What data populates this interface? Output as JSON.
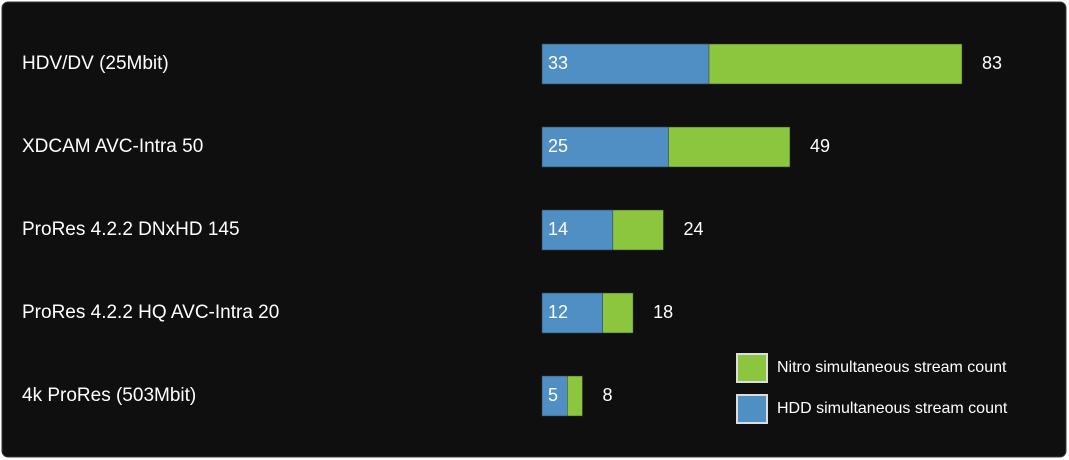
{
  "chart_data": {
    "type": "overlapping-bar",
    "categories": [
      "HDV/DV (25Mbit)",
      "XDCAM AVC-Intra 50",
      "ProRes 4.2.2 DNxHD 145",
      "ProRes 4.2.2 HQ AVC-Intra 20",
      "4k ProRes (503Mbit)"
    ],
    "series": [
      {
        "name": "Nitro simultaneous stream count",
        "color": "#8cc63f",
        "values": [
          83,
          49,
          24,
          18,
          8
        ]
      },
      {
        "name": "HDD simultaneous stream count",
        "color": "#4f8fc4",
        "values": [
          33,
          25,
          14,
          12,
          5
        ]
      }
    ],
    "legend": "bottom-right"
  }
}
